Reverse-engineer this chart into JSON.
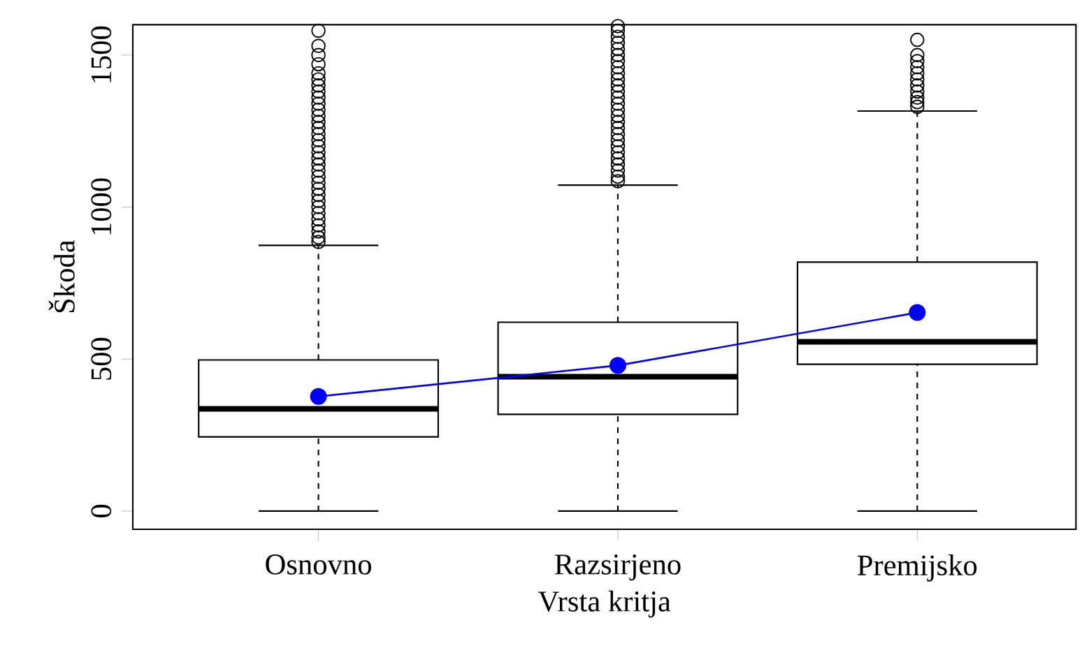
{
  "chart_data": {
    "type": "box",
    "xlabel": "Vrsta kritja",
    "ylabel": "Škoda",
    "categories": [
      "Osnovno",
      "Razsirjeno",
      "Premijsko"
    ],
    "boxes": [
      {
        "low": 0,
        "q1": 244,
        "median": 336,
        "q3": 497,
        "high": 874,
        "outliers": [
          885,
          900,
          920,
          940,
          960,
          980,
          1000,
          1020,
          1040,
          1060,
          1080,
          1100,
          1120,
          1140,
          1160,
          1180,
          1200,
          1220,
          1240,
          1260,
          1280,
          1300,
          1320,
          1340,
          1360,
          1380,
          1400,
          1420,
          1440,
          1470,
          1500,
          1530,
          1580
        ]
      },
      {
        "low": 0,
        "q1": 318,
        "median": 442,
        "q3": 621,
        "high": 1072,
        "outliers": [
          1085,
          1100,
          1120,
          1140,
          1160,
          1180,
          1200,
          1220,
          1240,
          1260,
          1280,
          1300,
          1320,
          1340,
          1360,
          1380,
          1400,
          1420,
          1440,
          1460,
          1480,
          1500,
          1520,
          1540,
          1560,
          1580,
          1595
        ]
      },
      {
        "low": 0,
        "q1": 483,
        "median": 557,
        "q3": 819,
        "high": 1316,
        "outliers": [
          1330,
          1345,
          1360,
          1380,
          1400,
          1420,
          1440,
          1460,
          1480,
          1500,
          1550
        ]
      }
    ],
    "series": [
      {
        "type": "line",
        "color": "#0000ff",
        "marker": "circle",
        "values": [
          377,
          479,
          653
        ]
      }
    ],
    "ylim": [
      -60,
      1600
    ],
    "yticks": [
      0,
      500,
      1000,
      1500
    ]
  }
}
